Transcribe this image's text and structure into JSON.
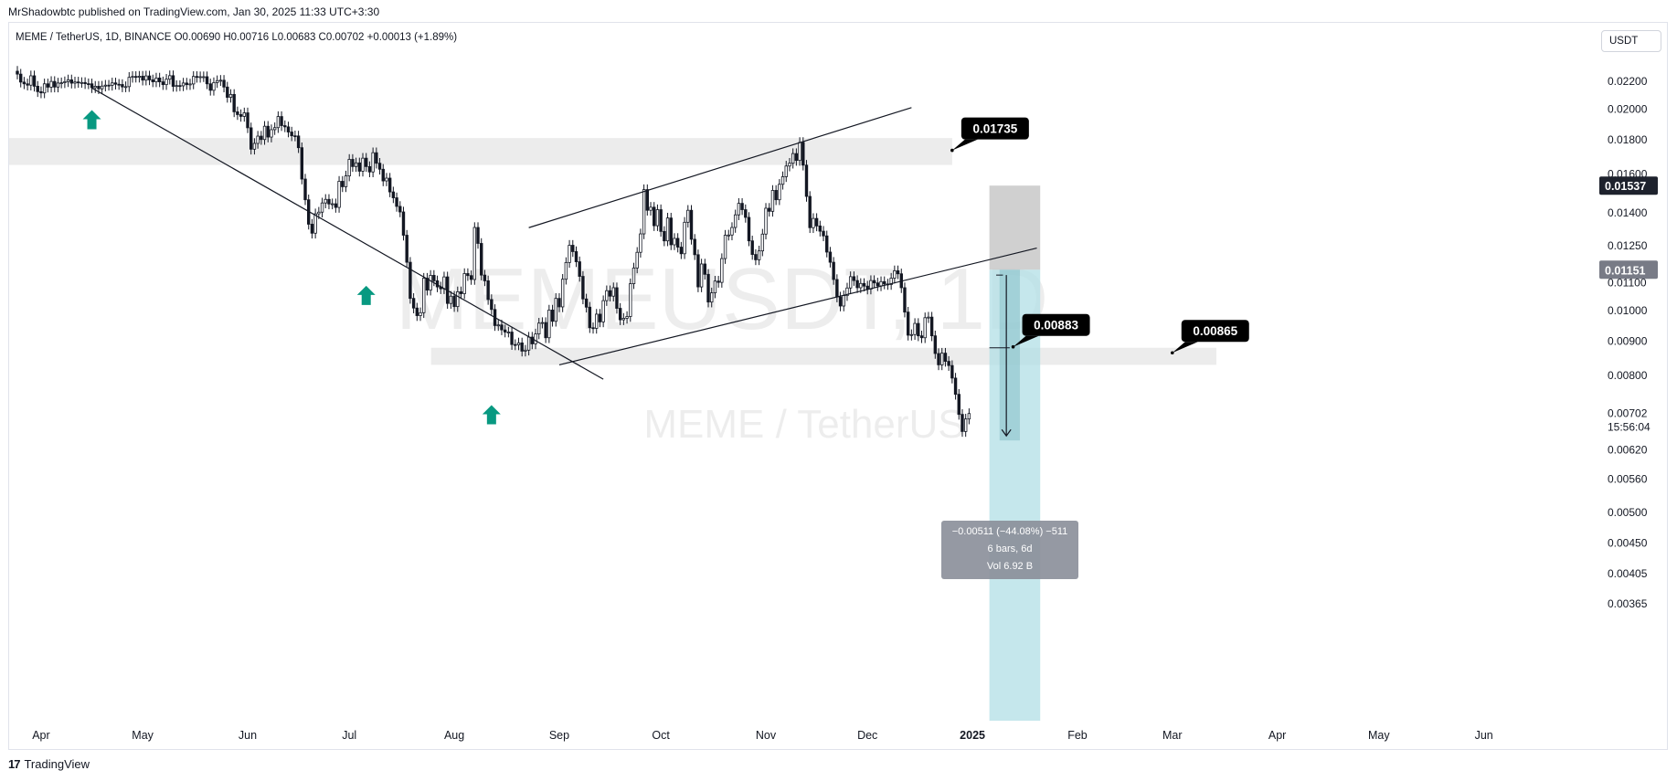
{
  "publisher_line": "MrShadowbtc published on TradingView.com, Jan 30, 2025 11:33 UTC+3:30",
  "symbol_line": "MEME / TetherUS, 1D, BINANCE  O0.00690  H0.00716  L0.00683  C0.00702  +0.00013 (+1.89%)",
  "currency_button": "USDT",
  "footer_brand": "TradingView",
  "colors": {
    "candle": "#131722",
    "zone": "#ececec",
    "arrow": "#089981",
    "measure_fill": "#b2dfe5",
    "measure_gray": "#c4c4c4",
    "label_bg": "#000000"
  },
  "chart_data": {
    "type": "candlestick",
    "symbol": "MEME / TetherUS",
    "interval": "1D",
    "exchange": "BINANCE",
    "watermark_ticker": "MEMEUSDT, 1D",
    "watermark_name": "MEME / TetherUS",
    "x_ticks": [
      "Apr",
      "May",
      "Jun",
      "Jul",
      "Aug",
      "Sep",
      "Oct",
      "Nov",
      "Dec",
      "2025",
      "Feb",
      "Mar",
      "Apr",
      "May",
      "Jun"
    ],
    "y_ticks": [
      "0.02200",
      "0.02000",
      "0.01800",
      "0.01600",
      "0.01400",
      "0.01250",
      "0.01100",
      "0.01000",
      "0.00900",
      "0.00800",
      "0.00702",
      "0.00620",
      "0.00560",
      "0.00500",
      "0.00450",
      "0.00405",
      "0.00365"
    ],
    "y_scale": "log",
    "price_tags": [
      {
        "label": "0.01537",
        "price": 0.01537,
        "style": "dark"
      },
      {
        "label": "0.01151",
        "price": 0.01151,
        "style": "gray"
      },
      {
        "label": "0.00702",
        "price": 0.00702,
        "style": "plain"
      }
    ],
    "countdown": "15:56:04",
    "callouts": [
      {
        "label": "0.01735",
        "price": 0.01735,
        "date": "2024-12-26"
      },
      {
        "label": "0.00865",
        "price": 0.00865,
        "date": "2025-03-01"
      },
      {
        "label": "0.00883",
        "price": 0.00883,
        "date": "2025-01-13"
      }
    ],
    "measure_stats": [
      "−0.00511 (−44.08%) −511",
      "6 bars, 6d",
      "Vol 6.92 B"
    ],
    "zones": [
      {
        "from": "2024-03-25",
        "to": "2024-12-26",
        "top": 0.0181,
        "bottom": 0.0165
      },
      {
        "from": "2024-07-30",
        "to": "2025-03-14",
        "top": 0.0088,
        "bottom": 0.0083
      }
    ],
    "trendlines": [
      {
        "from": [
          "2024-04-16",
          0.0215
        ],
        "to": [
          "2024-09-14",
          0.0079
        ]
      },
      {
        "from": [
          "2024-08-23",
          0.0133
        ],
        "to": [
          "2024-12-14",
          0.0201
        ]
      },
      {
        "from": [
          "2024-09-01",
          0.0083
        ],
        "to": [
          "2025-01-20",
          0.0124
        ]
      }
    ],
    "arrows": [
      {
        "date": "2024-04-16",
        "price": 0.01925
      },
      {
        "date": "2024-07-06",
        "price": 0.01052
      },
      {
        "date": "2024-08-12",
        "price": 0.00698
      }
    ],
    "closes": [
      0.02255,
      0.02194,
      0.02181,
      0.02171,
      0.02242,
      0.02163,
      0.02123,
      0.02114,
      0.02181,
      0.02156,
      0.02199,
      0.02157,
      0.02187,
      0.02189,
      0.02197,
      0.02211,
      0.02186,
      0.02195,
      0.02191,
      0.02191,
      0.02182,
      0.02181,
      0.02152,
      0.02163,
      0.02144,
      0.02164,
      0.02171,
      0.0217,
      0.02188,
      0.02178,
      0.02176,
      0.02158,
      0.0216,
      0.0223,
      0.02237,
      0.02231,
      0.02239,
      0.02209,
      0.02241,
      0.02211,
      0.02196,
      0.02225,
      0.02196,
      0.02175,
      0.02216,
      0.02243,
      0.02162,
      0.02168,
      0.02166,
      0.02187,
      0.02175,
      0.0218,
      0.02237,
      0.0223,
      0.02235,
      0.02235,
      0.02181,
      0.02133,
      0.0219,
      0.02205,
      0.02208,
      0.02157,
      0.02082,
      0.02103,
      0.01981,
      0.01962,
      0.0195,
      0.01974,
      0.01875,
      0.01742,
      0.01777,
      0.01822,
      0.01801,
      0.01885,
      0.01816,
      0.01863,
      0.01876,
      0.01949,
      0.01889,
      0.01881,
      0.01848,
      0.01824,
      0.01823,
      0.01751,
      0.01572,
      0.01464,
      0.01346,
      0.01305,
      0.01395,
      0.01403,
      0.01448,
      0.01466,
      0.01443,
      0.01444,
      0.01426,
      0.0156,
      0.01531,
      0.01589,
      0.01682,
      0.01641,
      0.01662,
      0.01615,
      0.01689,
      0.01641,
      0.01611,
      0.01721,
      0.0166,
      0.01626,
      0.01562,
      0.01577,
      0.01504,
      0.01474,
      0.01431,
      0.01404,
      0.01296,
      0.01181,
      0.01043,
      0.01009,
      0.00983,
      0.00993,
      0.01118,
      0.01073,
      0.01129,
      0.01108,
      0.01085,
      0.01078,
      0.01123,
      0.01025,
      0.01051,
      0.01014,
      0.01067,
      0.0106,
      0.01136,
      0.01128,
      0.01113,
      0.01331,
      0.0126,
      0.0113,
      0.01108,
      0.01039,
      0.01004,
      0.0095,
      0.00952,
      0.00936,
      0.00929,
      0.00929,
      0.0089,
      0.00889,
      0.00895,
      0.0087,
      0.00873,
      0.00913,
      0.00892,
      0.00923,
      0.00958,
      0.0096,
      0.00911,
      0.01002,
      0.00964,
      0.01043,
      0.01013,
      0.01114,
      0.0118,
      0.01252,
      0.01225,
      0.01183,
      0.01125,
      0.01041,
      0.01012,
      0.00943,
      0.00941,
      0.00988,
      0.00962,
      0.01035,
      0.01071,
      0.01051,
      0.01082,
      0.01008,
      0.00969,
      0.00974,
      0.0098,
      0.01097,
      0.01158,
      0.01222,
      0.01302,
      0.01516,
      0.01412,
      0.01427,
      0.01339,
      0.01415,
      0.01313,
      0.01271,
      0.01375,
      0.01254,
      0.01282,
      0.01244,
      0.01216,
      0.01355,
      0.01412,
      0.01278,
      0.01212,
      0.01085,
      0.01174,
      0.01133,
      0.0103,
      0.01063,
      0.01107,
      0.01102,
      0.01196,
      0.01296,
      0.01297,
      0.01331,
      0.0139,
      0.01446,
      0.01415,
      0.01378,
      0.01271,
      0.01213,
      0.01191,
      0.01228,
      0.01301,
      0.01422,
      0.01407,
      0.01512,
      0.01464,
      0.01544,
      0.01585,
      0.01644,
      0.0166,
      0.01716,
      0.01676,
      0.01783,
      0.01649,
      0.01481,
      0.0133,
      0.01373,
      0.01338,
      0.01314,
      0.01293,
      0.01223,
      0.01181,
      0.01113,
      0.01048,
      0.01016,
      0.01053,
      0.01081,
      0.01124,
      0.01109,
      0.01082,
      0.01098,
      0.01088,
      0.01077,
      0.01109,
      0.011,
      0.01089,
      0.01105,
      0.01096,
      0.01094,
      0.01118,
      0.01147,
      0.01135,
      0.01082,
      0.00995,
      0.00919,
      0.00921,
      0.00957,
      0.00917,
      0.00911,
      0.00976,
      0.00978,
      0.00917,
      0.00863,
      0.0083,
      0.00864,
      0.0084,
      0.00828,
      0.00793,
      0.0075,
      0.007,
      0.0066,
      0.00689,
      0.00702
    ]
  }
}
